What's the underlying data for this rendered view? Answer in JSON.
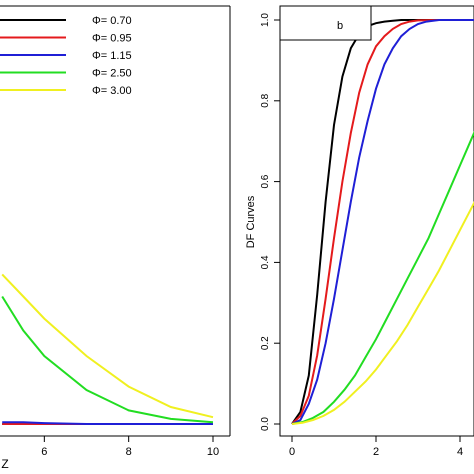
{
  "chart_data": [
    {
      "type": "line",
      "panel": "left",
      "title": "",
      "xlabel": "Z",
      "ylabel": "",
      "xlim": [
        0,
        10
      ],
      "x_ticks": [
        6,
        8,
        10
      ],
      "grid": false,
      "legend_position": "top-right",
      "series": [
        {
          "name": "Φ= 0.70",
          "color": "#000000",
          "x": [
            5.0,
            5.5,
            6.0,
            7.0,
            8.0,
            9.0,
            10.0
          ],
          "y": [
            0.0,
            0.0,
            0.0,
            0.0,
            0.0,
            0.0,
            0.0
          ]
        },
        {
          "name": "Φ= 0.95",
          "color": "#e41a1c",
          "x": [
            5.0,
            5.5,
            6.0,
            7.0,
            8.0,
            9.0,
            10.0
          ],
          "y": [
            0.0,
            0.0,
            0.0,
            0.0,
            0.0,
            0.0,
            0.0
          ]
        },
        {
          "name": "Φ= 1.15",
          "color": "#1f1fd6",
          "x": [
            5.0,
            5.5,
            6.0,
            7.0,
            8.0,
            9.0,
            10.0
          ],
          "y": [
            0.001,
            0.001,
            0.0005,
            0.0,
            0.0,
            0.0,
            0.0
          ]
        },
        {
          "name": "Φ= 2.50",
          "color": "#22dd22",
          "x": [
            5.0,
            5.5,
            6.0,
            7.0,
            8.0,
            9.0,
            10.0
          ],
          "y": [
            0.075,
            0.055,
            0.04,
            0.02,
            0.008,
            0.003,
            0.001
          ]
        },
        {
          "name": "Φ= 3.00",
          "color": "#f0f020",
          "x": [
            5.0,
            5.5,
            6.0,
            7.0,
            8.0,
            9.0,
            10.0
          ],
          "y": [
            0.088,
            0.075,
            0.062,
            0.04,
            0.022,
            0.01,
            0.004
          ]
        }
      ]
    },
    {
      "type": "line",
      "panel": "right",
      "title": "",
      "xlabel": "",
      "ylabel": "DF Curves",
      "xlim": [
        0,
        4.5
      ],
      "ylim": [
        0,
        1
      ],
      "x_ticks": [
        0,
        2,
        4
      ],
      "y_ticks": [
        0.0,
        0.2,
        0.4,
        0.6,
        0.8,
        1.0
      ],
      "grid": false,
      "annotation": "b",
      "series": [
        {
          "name": "Φ= 0.70",
          "color": "#000000",
          "x": [
            0,
            0.2,
            0.4,
            0.6,
            0.8,
            1.0,
            1.2,
            1.4,
            1.6,
            1.8,
            2.0,
            2.2,
            2.4,
            2.6,
            3.0,
            3.5,
            4.0,
            4.5
          ],
          "y": [
            0.0,
            0.03,
            0.12,
            0.32,
            0.55,
            0.74,
            0.86,
            0.93,
            0.965,
            0.985,
            0.992,
            0.996,
            0.998,
            1.0,
            1.0,
            1.0,
            1.0,
            1.0
          ]
        },
        {
          "name": "Φ= 0.95",
          "color": "#e41a1c",
          "x": [
            0,
            0.2,
            0.4,
            0.6,
            0.8,
            1.0,
            1.2,
            1.4,
            1.6,
            1.8,
            2.0,
            2.2,
            2.4,
            2.6,
            2.8,
            3.0,
            3.5,
            4.0,
            4.5
          ],
          "y": [
            0.0,
            0.02,
            0.07,
            0.17,
            0.31,
            0.46,
            0.6,
            0.72,
            0.82,
            0.89,
            0.935,
            0.96,
            0.978,
            0.99,
            0.996,
            0.999,
            1.0,
            1.0,
            1.0
          ]
        },
        {
          "name": "Φ= 1.15",
          "color": "#1f1fd6",
          "x": [
            0,
            0.2,
            0.4,
            0.6,
            0.8,
            1.0,
            1.2,
            1.4,
            1.6,
            1.8,
            2.0,
            2.2,
            2.4,
            2.6,
            2.8,
            3.0,
            3.2,
            3.5,
            4.0,
            4.5
          ],
          "y": [
            0.0,
            0.01,
            0.05,
            0.11,
            0.2,
            0.31,
            0.43,
            0.55,
            0.66,
            0.75,
            0.83,
            0.89,
            0.93,
            0.96,
            0.978,
            0.99,
            0.996,
            1.0,
            1.0,
            1.0
          ]
        },
        {
          "name": "Φ= 2.50",
          "color": "#22dd22",
          "x": [
            0,
            0.25,
            0.5,
            0.75,
            1.0,
            1.25,
            1.5,
            1.75,
            2.0,
            2.25,
            2.5,
            2.75,
            3.0,
            3.25,
            3.5,
            3.75,
            4.0,
            4.25,
            4.5
          ],
          "y": [
            0.0,
            0.005,
            0.015,
            0.03,
            0.055,
            0.085,
            0.12,
            0.165,
            0.21,
            0.26,
            0.31,
            0.36,
            0.41,
            0.46,
            0.52,
            0.58,
            0.64,
            0.7,
            0.76
          ]
        },
        {
          "name": "Φ= 3.00",
          "color": "#f0f020",
          "x": [
            0,
            0.25,
            0.5,
            0.75,
            1.0,
            1.25,
            1.5,
            1.75,
            2.0,
            2.25,
            2.5,
            2.75,
            3.0,
            3.25,
            3.5,
            3.75,
            4.0,
            4.25,
            4.5
          ],
          "y": [
            0.0,
            0.003,
            0.01,
            0.02,
            0.035,
            0.055,
            0.08,
            0.105,
            0.135,
            0.17,
            0.205,
            0.245,
            0.29,
            0.335,
            0.38,
            0.43,
            0.48,
            0.53,
            0.58
          ]
        }
      ]
    }
  ]
}
